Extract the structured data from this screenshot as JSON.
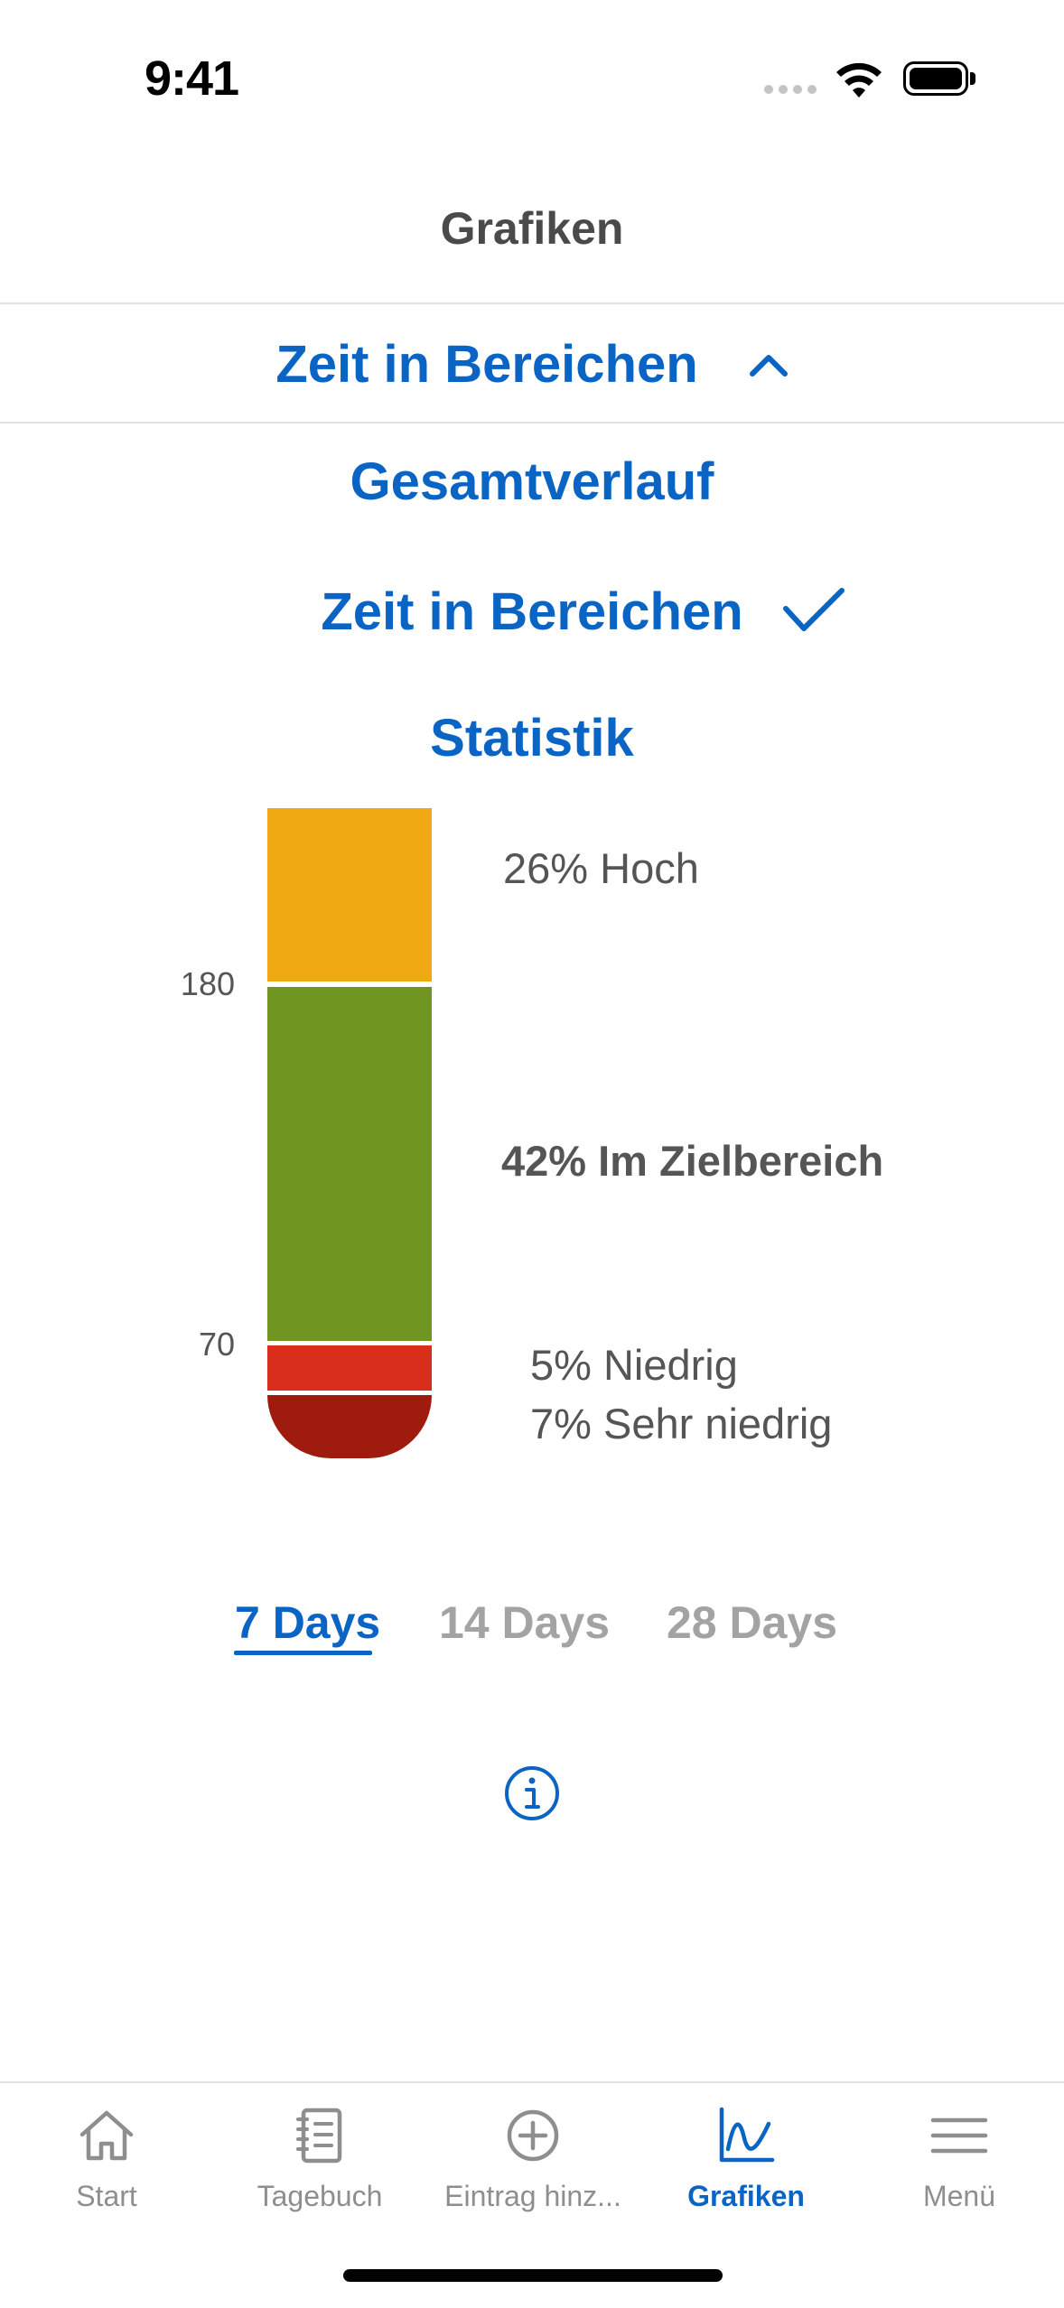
{
  "status_bar": {
    "time": "9:41"
  },
  "header": {
    "title": "Grafiken"
  },
  "selector": {
    "label": "Zeit in Bereichen"
  },
  "menu": {
    "options": [
      {
        "label": "Gesamtverlauf"
      },
      {
        "label": "Zeit in Bereichen"
      },
      {
        "label": "Statistik"
      }
    ]
  },
  "chart_data": {
    "type": "bar",
    "categories": [
      "Sehr niedrig",
      "Niedrig",
      "Im Zielbereich",
      "Hoch"
    ],
    "values": [
      7,
      5,
      42,
      26
    ],
    "unit": "%",
    "thresholds": [
      "70",
      "180"
    ],
    "labels": {
      "high": "26% Hoch",
      "target": "42% Im Zielbereich",
      "low": "5% Niedrig",
      "very_low": "7% Sehr niedrig"
    },
    "colors": {
      "high": "#f0a913",
      "target": "#709520",
      "low": "#d82e1b",
      "very_low": "#9e1b0e"
    }
  },
  "periods": [
    {
      "label": "7 Days",
      "active": true
    },
    {
      "label": "14 Days",
      "active": false
    },
    {
      "label": "28 Days",
      "active": false
    }
  ],
  "tabbar": {
    "items": [
      {
        "label": "Start",
        "icon": "home-icon"
      },
      {
        "label": "Tagebuch",
        "icon": "notebook-icon"
      },
      {
        "label": "Eintrag hinz...",
        "icon": "plus-circle-icon"
      },
      {
        "label": "Grafiken",
        "icon": "chart-icon",
        "active": true
      },
      {
        "label": "Menü",
        "icon": "menu-icon"
      }
    ]
  },
  "colors": {
    "accent": "#0a64c4",
    "inactive": "#8e8e8e"
  }
}
